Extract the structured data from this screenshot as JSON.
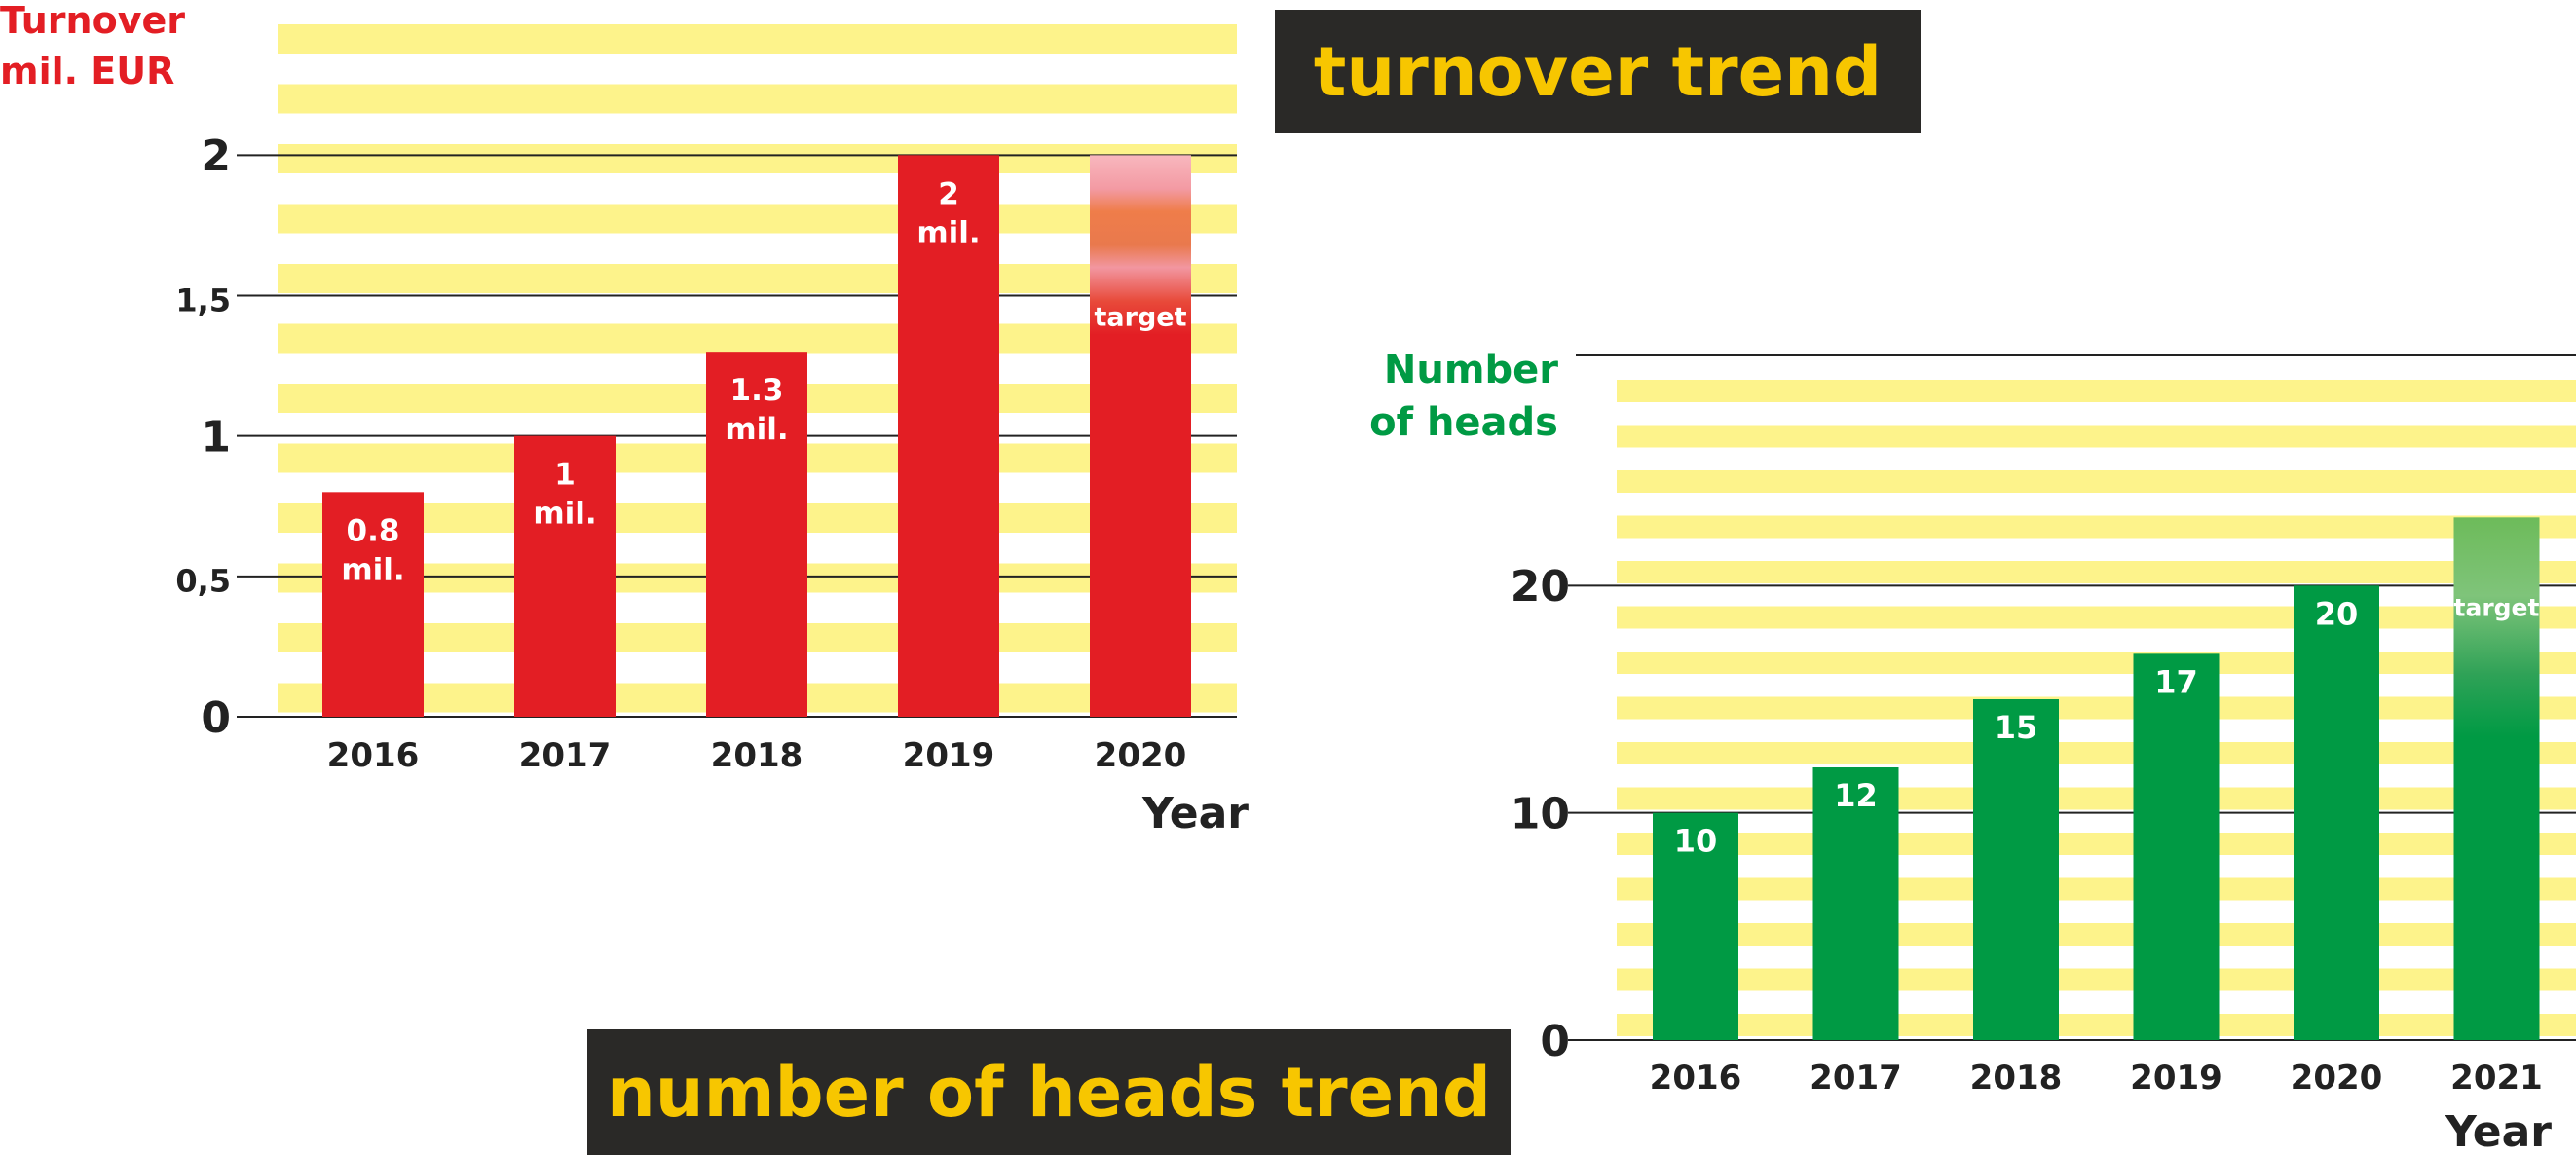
{
  "titles": {
    "turnover": "turnover trend",
    "heads": "number of heads trend"
  },
  "colors": {
    "band": "#fdf38b",
    "turnover_bar": "#e31e24",
    "heads_bar": "#009a44",
    "title_bg": "#2a2927",
    "title_text": "#f7c600",
    "axis_text": "#222222"
  },
  "chart_data": [
    {
      "type": "bar",
      "title": "turnover trend",
      "ylabel": [
        "Turnover",
        "mil. EUR"
      ],
      "xlabel": "Year",
      "categories": [
        "2016",
        "2017",
        "2018",
        "2019",
        "2020"
      ],
      "values": [
        0.8,
        1,
        1.3,
        2,
        2
      ],
      "value_labels": [
        [
          "0.8",
          "mil."
        ],
        [
          "1",
          "mil."
        ],
        [
          "1.3",
          "mil."
        ],
        [
          "2",
          "mil."
        ],
        [
          "target"
        ]
      ],
      "target_index": 4,
      "ylim": [
        0,
        2.4
      ],
      "yticks": [
        {
          "value": 0,
          "label": "0"
        },
        {
          "value": 0.5,
          "label": "0,5"
        },
        {
          "value": 1,
          "label": "1"
        },
        {
          "value": 1.5,
          "label": "1,5"
        },
        {
          "value": 2,
          "label": "2"
        }
      ],
      "grid": true
    },
    {
      "type": "bar",
      "title": "number of heads trend",
      "ylabel": [
        "Number",
        "of heads"
      ],
      "xlabel": "Year",
      "categories": [
        "2016",
        "2017",
        "2018",
        "2019",
        "2020",
        "2021"
      ],
      "values": [
        10,
        12,
        15,
        17,
        20,
        23
      ],
      "value_labels": [
        [
          "10"
        ],
        [
          "12"
        ],
        [
          "15"
        ],
        [
          "17"
        ],
        [
          "20"
        ],
        [
          "target"
        ]
      ],
      "target_index": 5,
      "ylim": [
        0,
        30
      ],
      "yticks": [
        {
          "value": 0,
          "label": "0"
        },
        {
          "value": 10,
          "label": "10"
        },
        {
          "value": 20,
          "label": "20"
        }
      ],
      "grid": true
    }
  ]
}
